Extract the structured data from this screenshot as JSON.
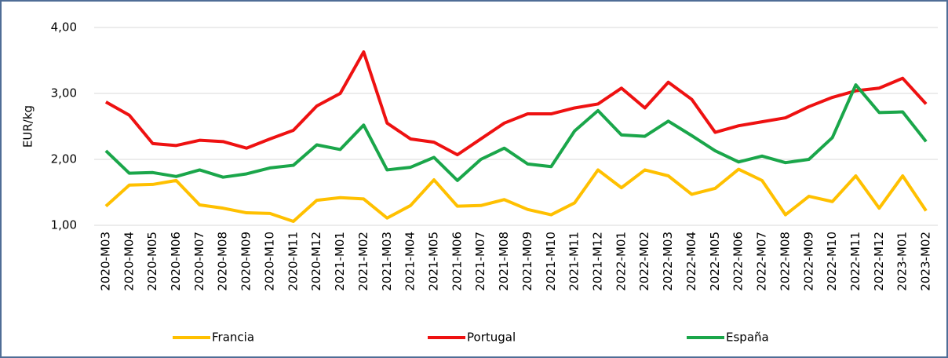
{
  "chart_data": {
    "type": "line",
    "ylabel": "EUR/kg",
    "categories": [
      "2020-M03",
      "2020-M04",
      "2020-M05",
      "2020-M06",
      "2020-M07",
      "2020-M08",
      "2020-M09",
      "2020-M10",
      "2020-M11",
      "2020-M12",
      "2021-M01",
      "2021-M02",
      "2021-M03",
      "2021-M04",
      "2021-M05",
      "2021-M06",
      "2021-M07",
      "2021-M08",
      "2021-M09",
      "2021-M10",
      "2021-M11",
      "2021-M12",
      "2022-M01",
      "2022-M02",
      "2022-M03",
      "2022-M04",
      "2022-M05",
      "2022-M06",
      "2022-M07",
      "2022-M08",
      "2022-M09",
      "2022-M10",
      "2022-M11",
      "2022-M12",
      "2023-M01",
      "2023-M02"
    ],
    "series": [
      {
        "name": "Francia",
        "color": "#ffc000",
        "values": [
          1.29,
          1.61,
          1.62,
          1.68,
          1.31,
          1.26,
          1.19,
          1.18,
          1.06,
          1.38,
          1.42,
          1.4,
          1.11,
          1.3,
          1.69,
          1.29,
          1.3,
          1.39,
          1.24,
          1.16,
          1.34,
          1.84,
          1.57,
          1.84,
          1.75,
          1.47,
          1.56,
          1.85,
          1.68,
          1.16,
          1.44,
          1.36,
          1.75,
          1.26,
          1.75,
          1.22
        ]
      },
      {
        "name": "Portugal",
        "color": "#ee1111",
        "values": [
          2.87,
          2.67,
          2.24,
          2.21,
          2.29,
          2.27,
          2.17,
          2.31,
          2.44,
          2.81,
          3.0,
          3.63,
          2.55,
          2.31,
          2.26,
          2.07,
          2.31,
          2.55,
          2.69,
          2.69,
          2.78,
          2.84,
          3.08,
          2.78,
          3.17,
          2.91,
          2.41,
          2.51,
          2.57,
          2.63,
          2.8,
          2.94,
          3.04,
          3.08,
          3.23,
          2.84
        ]
      },
      {
        "name": "España",
        "color": "#1aa64a",
        "values": [
          2.13,
          1.79,
          1.8,
          1.74,
          1.84,
          1.73,
          1.78,
          1.87,
          1.91,
          2.22,
          2.15,
          2.52,
          1.84,
          1.88,
          2.03,
          1.68,
          2.0,
          2.17,
          1.93,
          1.89,
          2.43,
          2.74,
          2.37,
          2.35,
          2.58,
          2.36,
          2.13,
          1.96,
          2.05,
          1.95,
          2.0,
          2.33,
          3.13,
          2.71,
          2.72,
          2.27
        ]
      }
    ],
    "ylim": [
      1,
      4
    ],
    "yticks": [
      {
        "value": 1,
        "label": "1,00"
      },
      {
        "value": 2,
        "label": "2,00"
      },
      {
        "value": 3,
        "label": "3,00"
      },
      {
        "value": 4,
        "label": "4,00"
      }
    ],
    "grid": true,
    "legend": "bottom"
  }
}
